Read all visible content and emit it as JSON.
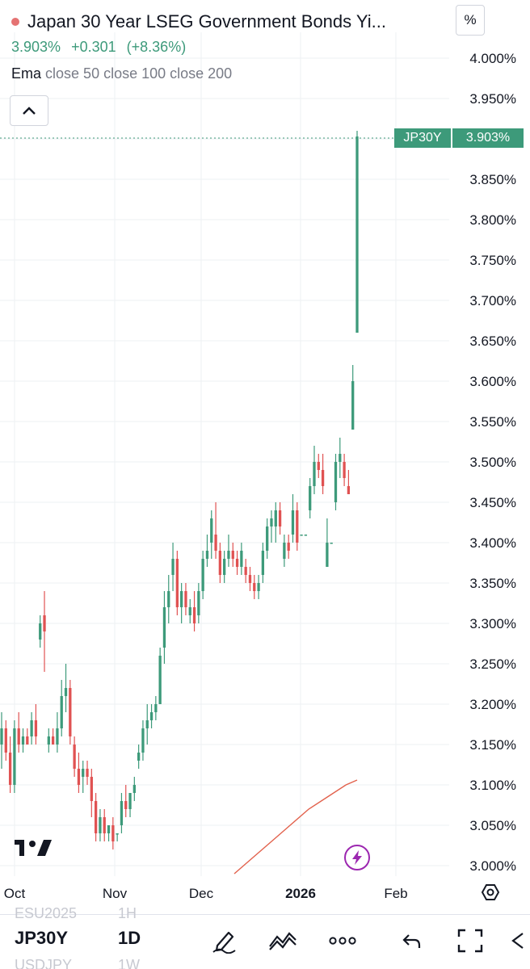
{
  "header": {
    "title": "Japan 30 Year LSEG Government Bonds Yi...",
    "last": "3.903%",
    "change": "+0.301",
    "change_pct": "(+8.36%)",
    "ema_label": "Ema",
    "ema_params": "close 50 close 100 close 200"
  },
  "scale_mode_label": "%",
  "price_tag": {
    "symbol": "JP30Y",
    "value": "3.903%"
  },
  "toolbar": {
    "symbol": "JP30Y",
    "interval": "1D",
    "ghost_rows": [
      {
        "symbol": "ESU2025",
        "interval": "1H"
      },
      {
        "symbol": "USDJPY",
        "interval": "1W"
      }
    ],
    "icons": [
      "draw-pen-icon",
      "indicators-icon",
      "more-icon",
      "undo-icon",
      "fullscreen-icon",
      "back-icon"
    ]
  },
  "colors": {
    "up": "#3d9a7a",
    "down": "#e05252",
    "ema": "#e2614c",
    "grid": "#eef0f3",
    "axis_text": "#131722"
  },
  "chart_data": {
    "type": "candlestick",
    "title": "Japan 30 Year LSEG Government Bonds Yi...",
    "ylim": [
      2.98,
      4.03
    ],
    "y_ticks": [
      "3.000%",
      "3.050%",
      "3.100%",
      "3.150%",
      "3.200%",
      "3.250%",
      "3.300%",
      "3.350%",
      "3.400%",
      "3.450%",
      "3.500%",
      "3.550%",
      "3.600%",
      "3.650%",
      "3.700%",
      "3.750%",
      "3.800%",
      "3.850%",
      "3.900%",
      "3.950%",
      "4.000%"
    ],
    "x_ticks": [
      "Oct",
      "Nov",
      "Dec",
      "2026",
      "Feb"
    ],
    "x_dates": [
      "2025-10-01",
      "2025-11-03",
      "2025-12-01",
      "2026-01-01",
      "2026-02-01"
    ],
    "last_value": 3.903,
    "grid": true,
    "series": [
      {
        "name": "JP30Y",
        "type": "candlestick",
        "candles": [
          {
            "o": 3.15,
            "h": 3.19,
            "l": 3.12,
            "c": 3.17
          },
          {
            "o": 3.17,
            "h": 3.18,
            "l": 3.13,
            "c": 3.14
          },
          {
            "o": 3.14,
            "h": 3.16,
            "l": 3.09,
            "c": 3.1
          },
          {
            "o": 3.1,
            "h": 3.18,
            "l": 3.09,
            "c": 3.17
          },
          {
            "o": 3.17,
            "h": 3.19,
            "l": 3.14,
            "c": 3.15
          },
          {
            "o": 3.15,
            "h": 3.17,
            "l": 3.14,
            "c": 3.16
          },
          {
            "o": 3.16,
            "h": 3.17,
            "l": 3.15,
            "c": 3.15
          },
          {
            "o": 3.16,
            "h": 3.19,
            "l": 3.15,
            "c": 3.18
          },
          {
            "o": 3.18,
            "h": 3.2,
            "l": 3.15,
            "c": 3.16
          },
          {
            "o": 3.28,
            "h": 3.31,
            "l": 3.27,
            "c": 3.3
          },
          {
            "o": 3.31,
            "h": 3.34,
            "l": 3.24,
            "c": 3.29
          },
          {
            "o": 3.15,
            "h": 3.17,
            "l": 3.14,
            "c": 3.16
          },
          {
            "o": 3.16,
            "h": 3.17,
            "l": 3.15,
            "c": 3.15
          },
          {
            "o": 3.15,
            "h": 3.19,
            "l": 3.14,
            "c": 3.17
          },
          {
            "o": 3.17,
            "h": 3.23,
            "l": 3.16,
            "c": 3.21
          },
          {
            "o": 3.21,
            "h": 3.25,
            "l": 3.19,
            "c": 3.22
          },
          {
            "o": 3.22,
            "h": 3.23,
            "l": 3.15,
            "c": 3.16
          },
          {
            "o": 3.15,
            "h": 3.16,
            "l": 3.11,
            "c": 3.12
          },
          {
            "o": 3.12,
            "h": 3.14,
            "l": 3.09,
            "c": 3.1
          },
          {
            "o": 3.11,
            "h": 3.13,
            "l": 3.09,
            "c": 3.12
          },
          {
            "o": 3.12,
            "h": 3.13,
            "l": 3.1,
            "c": 3.11
          },
          {
            "o": 3.11,
            "h": 3.12,
            "l": 3.06,
            "c": 3.08
          },
          {
            "o": 3.08,
            "h": 3.09,
            "l": 3.03,
            "c": 3.04
          },
          {
            "o": 3.04,
            "h": 3.07,
            "l": 3.03,
            "c": 3.06
          },
          {
            "o": 3.06,
            "h": 3.07,
            "l": 3.03,
            "c": 3.04
          },
          {
            "o": 3.04,
            "h": 3.05,
            "l": 3.03,
            "c": 3.05
          },
          {
            "o": 3.05,
            "h": 3.06,
            "l": 3.02,
            "c": 3.03
          },
          {
            "o": 3.04,
            "h": 3.04,
            "l": 3.03,
            "c": 3.04
          },
          {
            "o": 3.05,
            "h": 3.09,
            "l": 3.04,
            "c": 3.08
          },
          {
            "o": 3.08,
            "h": 3.1,
            "l": 3.06,
            "c": 3.07
          },
          {
            "o": 3.07,
            "h": 3.09,
            "l": 3.06,
            "c": 3.09
          },
          {
            "o": 3.09,
            "h": 3.11,
            "l": 3.08,
            "c": 3.1
          },
          {
            "o": 3.13,
            "h": 3.15,
            "l": 3.12,
            "c": 3.14
          },
          {
            "o": 3.14,
            "h": 3.18,
            "l": 3.13,
            "c": 3.17
          },
          {
            "o": 3.17,
            "h": 3.2,
            "l": 3.15,
            "c": 3.18
          },
          {
            "o": 3.18,
            "h": 3.2,
            "l": 3.17,
            "c": 3.19
          },
          {
            "o": 3.19,
            "h": 3.21,
            "l": 3.18,
            "c": 3.2
          },
          {
            "o": 3.2,
            "h": 3.27,
            "l": 3.2,
            "c": 3.26
          },
          {
            "o": 3.27,
            "h": 3.34,
            "l": 3.25,
            "c": 3.32
          },
          {
            "o": 3.32,
            "h": 3.36,
            "l": 3.3,
            "c": 3.34
          },
          {
            "o": 3.36,
            "h": 3.4,
            "l": 3.34,
            "c": 3.38
          },
          {
            "o": 3.38,
            "h": 3.39,
            "l": 3.31,
            "c": 3.32
          },
          {
            "o": 3.32,
            "h": 3.35,
            "l": 3.3,
            "c": 3.34
          },
          {
            "o": 3.34,
            "h": 3.35,
            "l": 3.31,
            "c": 3.32
          },
          {
            "o": 3.31,
            "h": 3.33,
            "l": 3.3,
            "c": 3.32
          },
          {
            "o": 3.32,
            "h": 3.34,
            "l": 3.29,
            "c": 3.3
          },
          {
            "o": 3.31,
            "h": 3.35,
            "l": 3.3,
            "c": 3.34
          },
          {
            "o": 3.34,
            "h": 3.39,
            "l": 3.33,
            "c": 3.38
          },
          {
            "o": 3.38,
            "h": 3.41,
            "l": 3.37,
            "c": 3.39
          },
          {
            "o": 3.4,
            "h": 3.44,
            "l": 3.38,
            "c": 3.43
          },
          {
            "o": 3.41,
            "h": 3.45,
            "l": 3.38,
            "c": 3.39
          },
          {
            "o": 3.39,
            "h": 3.4,
            "l": 3.35,
            "c": 3.36
          },
          {
            "o": 3.36,
            "h": 3.39,
            "l": 3.35,
            "c": 3.38
          },
          {
            "o": 3.38,
            "h": 3.41,
            "l": 3.37,
            "c": 3.39
          },
          {
            "o": 3.39,
            "h": 3.4,
            "l": 3.37,
            "c": 3.38
          },
          {
            "o": 3.38,
            "h": 3.39,
            "l": 3.36,
            "c": 3.37
          },
          {
            "o": 3.37,
            "h": 3.4,
            "l": 3.36,
            "c": 3.39
          },
          {
            "o": 3.37,
            "h": 3.38,
            "l": 3.35,
            "c": 3.36
          },
          {
            "o": 3.36,
            "h": 3.37,
            "l": 3.34,
            "c": 3.35
          },
          {
            "o": 3.35,
            "h": 3.36,
            "l": 3.33,
            "c": 3.34
          },
          {
            "o": 3.34,
            "h": 3.36,
            "l": 3.33,
            "c": 3.35
          },
          {
            "o": 3.36,
            "h": 3.4,
            "l": 3.35,
            "c": 3.39
          },
          {
            "o": 3.39,
            "h": 3.43,
            "l": 3.38,
            "c": 3.42
          },
          {
            "o": 3.42,
            "h": 3.44,
            "l": 3.4,
            "c": 3.43
          },
          {
            "o": 3.42,
            "h": 3.45,
            "l": 3.4,
            "c": 3.44
          },
          {
            "o": 3.44,
            "h": 3.45,
            "l": 3.41,
            "c": 3.42
          },
          {
            "o": 3.38,
            "h": 3.41,
            "l": 3.37,
            "c": 3.4
          },
          {
            "o": 3.4,
            "h": 3.41,
            "l": 3.38,
            "c": 3.39
          },
          {
            "o": 3.41,
            "h": 3.46,
            "l": 3.4,
            "c": 3.44
          },
          {
            "o": 3.44,
            "h": 3.45,
            "l": 3.39,
            "c": 3.4
          },
          {
            "o": 3.41,
            "h": 3.41,
            "l": 3.41,
            "c": 3.41
          },
          {
            "o": 3.41,
            "h": 3.41,
            "l": 3.41,
            "c": 3.41
          },
          {
            "o": 3.44,
            "h": 3.48,
            "l": 3.43,
            "c": 3.47
          },
          {
            "o": 3.47,
            "h": 3.52,
            "l": 3.46,
            "c": 3.5
          },
          {
            "o": 3.5,
            "h": 3.51,
            "l": 3.48,
            "c": 3.49
          },
          {
            "o": 3.49,
            "h": 3.51,
            "l": 3.46,
            "c": 3.47
          },
          {
            "o": 3.37,
            "h": 3.43,
            "l": 3.37,
            "c": 3.4
          },
          {
            "o": 3.4,
            "h": 3.4,
            "l": 3.4,
            "c": 3.4
          },
          {
            "o": 3.45,
            "h": 3.51,
            "l": 3.44,
            "c": 3.5
          },
          {
            "o": 3.5,
            "h": 3.53,
            "l": 3.48,
            "c": 3.51
          },
          {
            "o": 3.5,
            "h": 3.51,
            "l": 3.47,
            "c": 3.48
          },
          {
            "o": 3.47,
            "h": 3.49,
            "l": 3.46,
            "c": 3.46
          },
          {
            "o": 3.54,
            "h": 3.62,
            "l": 3.54,
            "c": 3.6
          },
          {
            "o": 3.66,
            "h": 3.91,
            "l": 3.66,
            "c": 3.903
          }
        ]
      },
      {
        "name": "Ema",
        "type": "line",
        "points": [
          [
            0,
            2.99
          ],
          [
            10,
            3.01
          ],
          [
            20,
            3.03
          ],
          [
            30,
            3.05
          ],
          [
            40,
            3.07
          ],
          [
            50,
            3.085
          ],
          [
            60,
            3.1
          ],
          [
            66,
            3.106
          ]
        ]
      }
    ]
  }
}
